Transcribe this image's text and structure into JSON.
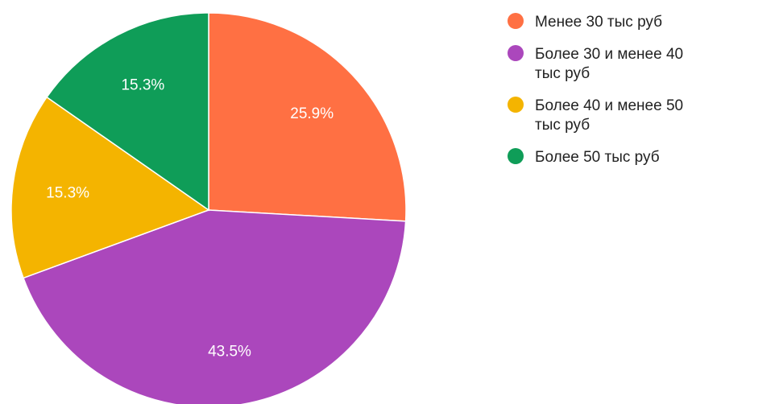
{
  "chart_data": {
    "type": "pie",
    "slices": [
      {
        "label": "Менее 30 тыс руб",
        "value": 25.9,
        "display": "25.9%",
        "color": "#ff7043"
      },
      {
        "label": "Более 30 и менее 40 тыс руб",
        "value": 43.5,
        "display": "43.5%",
        "color": "#ab47bc"
      },
      {
        "label": "Более 40 и менее 50 тыс руб",
        "value": 15.3,
        "display": "15.3%",
        "color": "#f4b400"
      },
      {
        "label": "Более 50 тыс руб",
        "value": 15.3,
        "display": "15.3%",
        "color": "#0f9d58"
      }
    ],
    "legend_position": "right"
  }
}
